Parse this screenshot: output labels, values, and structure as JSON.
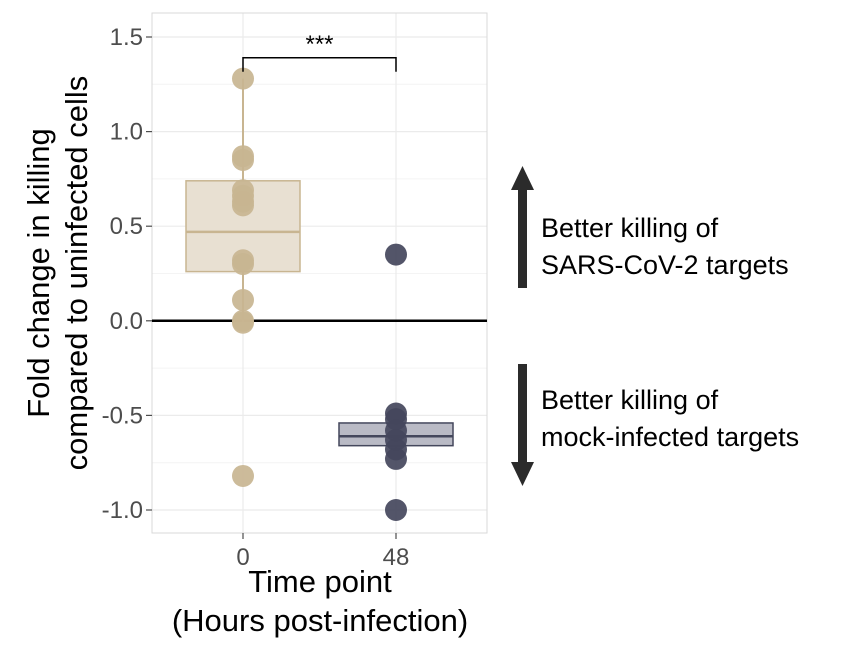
{
  "chart_data": {
    "type": "box",
    "title": "",
    "xlabel_line1": "Time point",
    "xlabel_line2": "(Hours post-infection)",
    "ylabel_line1": "Fold change in killing",
    "ylabel_line2": "compared to uninfected cells",
    "ylim": [
      -1.12,
      1.62
    ],
    "yticks": [
      1.5,
      1.0,
      0.5,
      0.0,
      -0.5,
      -1.0
    ],
    "ytick_labels": [
      "1.5",
      "1.0",
      "0.5",
      "0.0",
      "-0.5",
      "-1.0"
    ],
    "categories": [
      "0",
      "48"
    ],
    "grid": true,
    "reference_line_y": 0.0,
    "groups": [
      {
        "name": "0",
        "color": "#c8b591",
        "box_fill": "#e8e0d2",
        "box_stroke": "#c8b591",
        "q1": 0.26,
        "median": 0.47,
        "q3": 0.74,
        "whisker_low": -0.01,
        "whisker_high": 1.28,
        "points": [
          1.28,
          0.87,
          0.85,
          0.69,
          0.66,
          0.63,
          0.61,
          0.32,
          0.3,
          0.11,
          0.0,
          -0.01,
          -0.82
        ]
      },
      {
        "name": "48",
        "color": "#44475c",
        "box_fill": "#b9bac5",
        "box_stroke": "#44475c",
        "q1": -0.66,
        "median": -0.61,
        "q3": -0.54,
        "whisker_low": -0.66,
        "whisker_high": -0.54,
        "points": [
          0.35,
          -0.49,
          -0.52,
          -0.58,
          -0.63,
          -0.68,
          -0.73,
          -1.0
        ]
      }
    ],
    "significance": {
      "label": "***",
      "from": "0",
      "to": "48",
      "y": 1.39
    },
    "annotations": [
      {
        "direction": "up",
        "line1": "Better killing of",
        "line2": "SARS-CoV-2 targets"
      },
      {
        "direction": "down",
        "line1": "Better killing of",
        "line2": "mock-infected targets"
      }
    ]
  },
  "colors": {
    "panel_border": "#d9d9d9",
    "grid": "#ebebeb",
    "zero_line": "#000000",
    "arrow": "#2b2b2b"
  }
}
